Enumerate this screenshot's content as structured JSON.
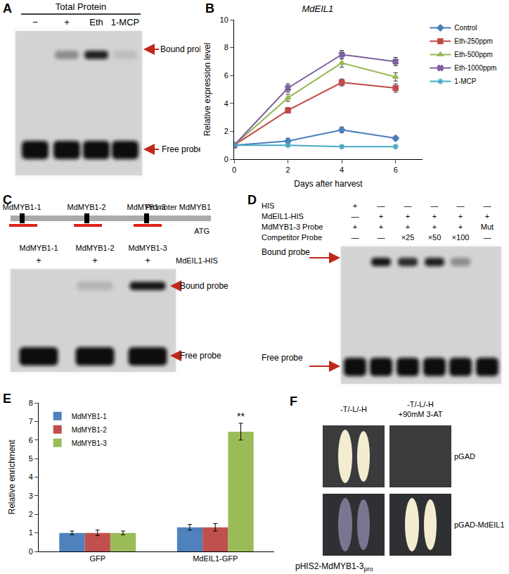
{
  "panels": {
    "A": {
      "label": "A",
      "header": "Total Protein",
      "lanes": [
        "−",
        "+",
        "Eth",
        "1-MCP"
      ],
      "bound": "Bound probe",
      "free": "Free probe"
    },
    "C": {
      "label": "C",
      "sites": [
        "MdMYB1-1",
        "MdMYB1-2",
        "MdMYB1-3"
      ],
      "promoter": "Promoter MdMYB1",
      "start": "ATG",
      "lanes": [
        "MdMYB1-1",
        "MdMYB1-2",
        "MdMYB1-3"
      ],
      "lane_marks": [
        "+",
        "+",
        "+"
      ],
      "protein": "MdEIL1-HIS",
      "bound": "Bound probe",
      "free": "Free probe"
    },
    "D": {
      "label": "D",
      "rows": [
        {
          "name": "HIS",
          "cells": [
            "+",
            "—",
            "—",
            "—",
            "—",
            "—"
          ]
        },
        {
          "name": "MdEIL1-HIS",
          "cells": [
            "—",
            "+",
            "+",
            "+",
            "+",
            "+"
          ]
        },
        {
          "name": "MdMYB1-3 Probe",
          "cells": [
            "+",
            "+",
            "+",
            "+",
            "+",
            "Mut"
          ]
        },
        {
          "name": "Competitor Probe",
          "cells": [
            "—",
            "—",
            "×25",
            "×50",
            "×100",
            "—"
          ]
        }
      ],
      "bound": "Bound probe",
      "free": "Free probe"
    },
    "F": {
      "label": "F",
      "columns": [
        [
          "-T/-L/-H"
        ],
        [
          "-T/-L/-H",
          "+90mM 3-AT"
        ]
      ],
      "rows": [
        "pGAD",
        "pGAD-MdEIL1"
      ],
      "reporter": {
        "text": "pHIS2-MdMYB1-3",
        "subscript": "pro"
      }
    }
  },
  "chart_data": [
    {
      "panel": "B",
      "type": "line",
      "title": "MdEIL1",
      "x": [
        0,
        2,
        4,
        6
      ],
      "xlabel": "Days after harvest",
      "ylabel": "Relative expression level",
      "xlim": [
        0,
        7
      ],
      "xticks": [
        0,
        2,
        4,
        6
      ],
      "ylim": [
        0,
        10
      ],
      "yticks": [
        0,
        2,
        4,
        6,
        8,
        10
      ],
      "legend": "right",
      "series": [
        {
          "name": "Control",
          "color": "#4a7ebb",
          "marker": "diamond",
          "values": [
            1,
            1.3,
            2.1,
            1.5
          ],
          "errors": [
            0.05,
            0.2,
            0.2,
            0.15
          ]
        },
        {
          "name": "Eth-250ppm",
          "color": "#be4b48",
          "marker": "square",
          "values": [
            1,
            3.5,
            5.5,
            5.1
          ],
          "errors": [
            0.05,
            0.2,
            0.25,
            0.3
          ]
        },
        {
          "name": "Eth-500ppm",
          "color": "#98b954",
          "marker": "triangle-up",
          "values": [
            1,
            4.4,
            6.9,
            5.9
          ],
          "errors": [
            0.05,
            0.25,
            0.3,
            0.3
          ]
        },
        {
          "name": "Eth-1000ppm",
          "color": "#7d60a0",
          "marker": "x",
          "values": [
            1,
            5.1,
            7.5,
            7.0
          ],
          "errors": [
            0.05,
            0.3,
            0.3,
            0.3
          ]
        },
        {
          "name": "1-MCP",
          "color": "#46aac5",
          "marker": "asterisk-open",
          "values": [
            1,
            1.0,
            0.9,
            0.9
          ],
          "errors": [
            0.05,
            0.1,
            0.1,
            0.1
          ]
        }
      ]
    },
    {
      "panel": "E",
      "type": "bar",
      "categories": [
        "GFP",
        "MdEIL1-GFP"
      ],
      "ylabel": "Relative enrichment",
      "ylim": [
        0,
        8
      ],
      "yticks": [
        0,
        1,
        2,
        3,
        4,
        5,
        6,
        7,
        8
      ],
      "legend": "upper left",
      "series": [
        {
          "name": "MdMYB1-1",
          "color": "#4f81bd",
          "values": [
            1.0,
            1.3
          ],
          "errors": [
            0.1,
            0.15
          ]
        },
        {
          "name": "MdMYB1-2",
          "color": "#c0504d",
          "values": [
            1.0,
            1.3
          ],
          "errors": [
            0.15,
            0.2
          ]
        },
        {
          "name": "MdMYB1-3",
          "color": "#9bbb59",
          "values": [
            1.0,
            6.45
          ],
          "errors": [
            0.1,
            0.45
          ]
        }
      ],
      "annotations": [
        {
          "text": "**",
          "category": "MdEIL1-GFP",
          "series": "MdMYB1-3"
        }
      ]
    }
  ]
}
